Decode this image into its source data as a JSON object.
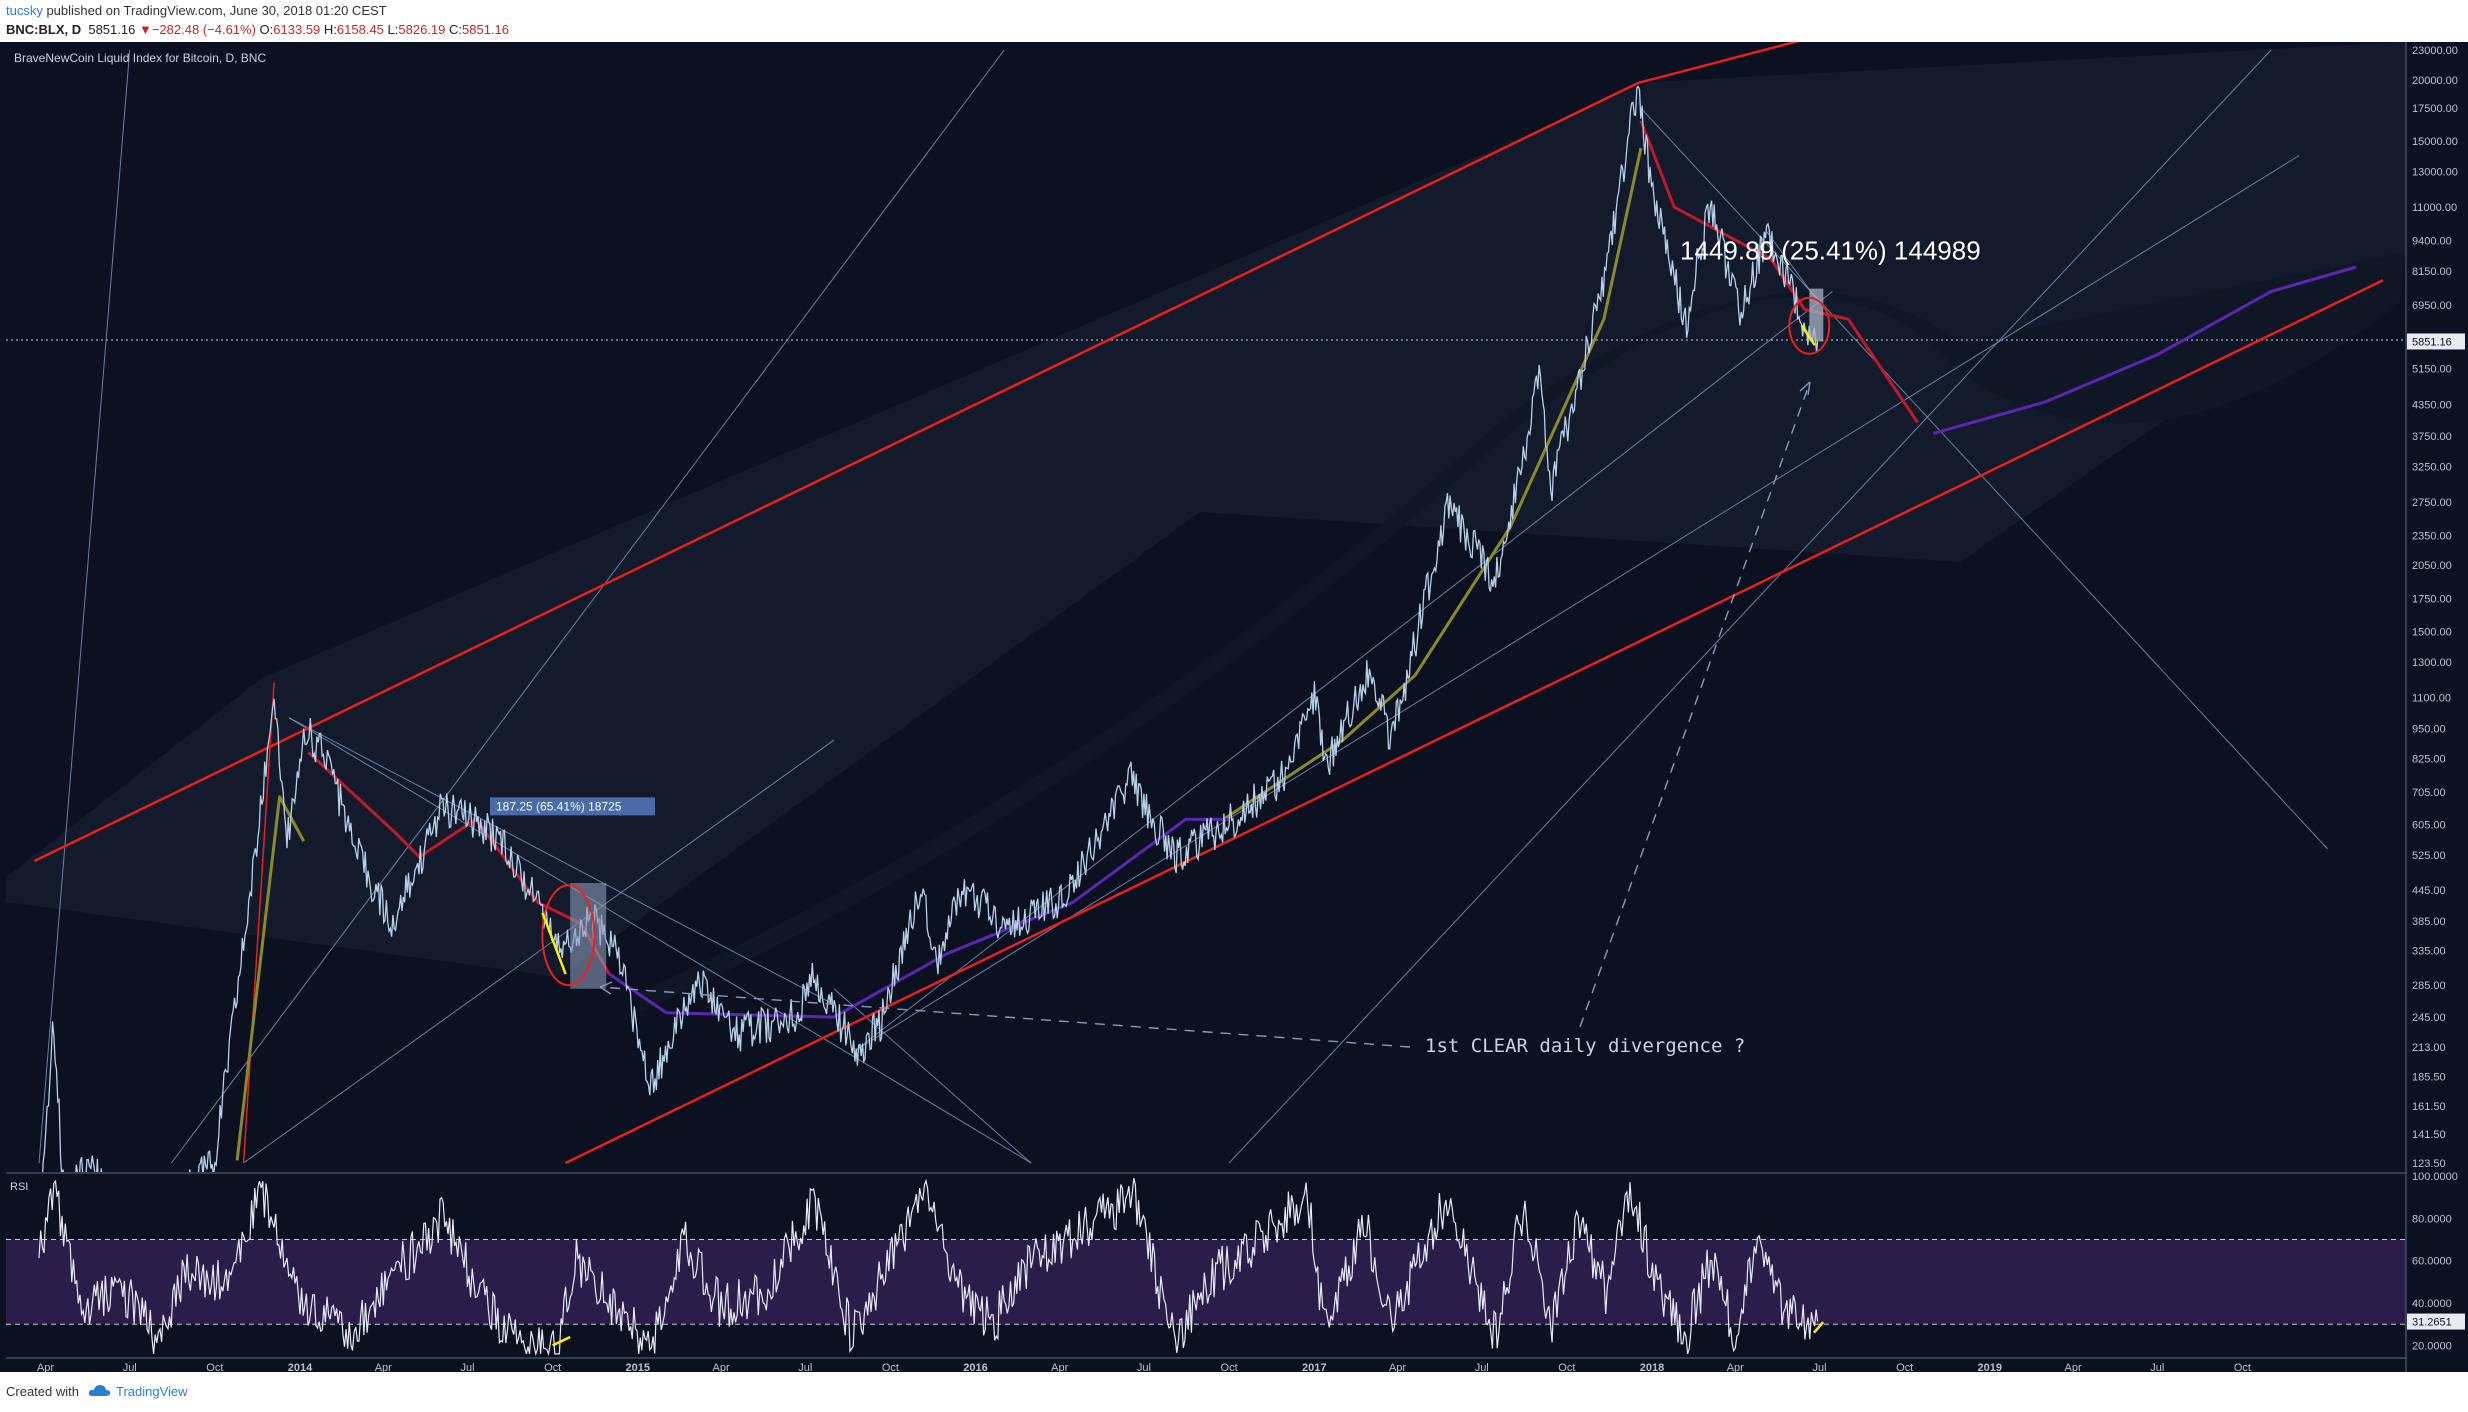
{
  "header": {
    "user": "tucsky",
    "published": " published on TradingView.com, June 30, 2018 01:20 CEST",
    "symbol": "BNC:BLX, D",
    "last": "5851.16",
    "change_arrow": "▼",
    "change": "−282.48 (−4.61%)",
    "o_label": "O:",
    "o": "6133.59",
    "h_label": "H:",
    "h": "6158.45",
    "l_label": "L:",
    "l": "5826.19",
    "c_label": "C:",
    "c": "5851.16"
  },
  "footer": {
    "created_with": "Created with",
    "brand": "TradingView"
  },
  "colors": {
    "background": "#0b1120",
    "price": "#b8cfe8",
    "channel": "#e8201e",
    "trendline": "#8aa3c8",
    "ma_green": "#8a8a2a",
    "ma_red": "#c0192a",
    "ma_purple": "#5a28b0",
    "rsi_line": "#e8e8f5",
    "rsi_band": "#2a1d4a",
    "highlight": "#ffee00"
  },
  "chart_data": {
    "type": "line",
    "title": "BraveNewCoin Liquid Index for Bitcoin, D, BNC",
    "price_scale": "log",
    "price_axis_ticks": [
      "123.50",
      "141.50",
      "161.50",
      "185.50",
      "213.00",
      "245.00",
      "285.00",
      "335.00",
      "385.00",
      "445.00",
      "525.00",
      "605.00",
      "705.00",
      "825.00",
      "950.00",
      "1100.00",
      "1300.00",
      "1500.00",
      "1750.00",
      "2050.00",
      "2350.00",
      "2750.00",
      "3250.00",
      "3750.00",
      "4350.00",
      "5150.00",
      "5851.16",
      "6950.00",
      "8150.00",
      "9400.00",
      "11000.00",
      "13000.00",
      "15000.00",
      "17500.00",
      "20000.00",
      "23000.00"
    ],
    "last_price_label": "5851.16",
    "time_axis_labels": [
      "Apr",
      "Jul",
      "Oct",
      "2014",
      "Apr",
      "Jul",
      "Oct",
      "2015",
      "Apr",
      "Jul",
      "Oct",
      "2016",
      "Apr",
      "Jul",
      "Oct",
      "2017",
      "Apr",
      "Jul",
      "Oct",
      "2018",
      "Apr",
      "Jul",
      "Oct",
      "2019",
      "Apr",
      "Jul",
      "Oct"
    ],
    "series": [
      {
        "name": "BLX",
        "points": [
          [
            "2013-03-25",
            95
          ],
          [
            "2013-04-10",
            240
          ],
          [
            "2013-04-20",
            110
          ],
          [
            "2013-05-20",
            120
          ],
          [
            "2013-06-30",
            95
          ],
          [
            "2013-08-15",
            100
          ],
          [
            "2013-10-01",
            125
          ],
          [
            "2013-11-18",
            600
          ],
          [
            "2013-12-04",
            1150
          ],
          [
            "2013-12-18",
            560
          ],
          [
            "2014-01-05",
            950
          ],
          [
            "2014-02-01",
            820
          ],
          [
            "2014-02-25",
            560
          ],
          [
            "2014-04-10",
            380
          ],
          [
            "2014-05-01",
            460
          ],
          [
            "2014-06-03",
            660
          ],
          [
            "2014-07-01",
            620
          ],
          [
            "2014-08-10",
            560
          ],
          [
            "2014-09-20",
            400
          ],
          [
            "2014-10-10",
            340
          ],
          [
            "2014-11-10",
            390
          ],
          [
            "2014-12-10",
            340
          ],
          [
            "2015-01-14",
            175
          ],
          [
            "2015-02-10",
            230
          ],
          [
            "2015-03-10",
            290
          ],
          [
            "2015-04-15",
            225
          ],
          [
            "2015-06-20",
            245
          ],
          [
            "2015-07-10",
            295
          ],
          [
            "2015-08-25",
            210
          ],
          [
            "2015-09-20",
            235
          ],
          [
            "2015-11-04",
            460
          ],
          [
            "2015-11-20",
            320
          ],
          [
            "2015-12-20",
            450
          ],
          [
            "2016-02-01",
            375
          ],
          [
            "2016-04-01",
            420
          ],
          [
            "2016-06-17",
            750
          ],
          [
            "2016-08-02",
            520
          ],
          [
            "2016-10-01",
            610
          ],
          [
            "2016-12-01",
            760
          ],
          [
            "2017-01-04",
            1150
          ],
          [
            "2017-01-12",
            780
          ],
          [
            "2017-03-03",
            1290
          ],
          [
            "2017-03-25",
            890
          ],
          [
            "2017-05-25",
            2700
          ],
          [
            "2017-07-16",
            1900
          ],
          [
            "2017-09-01",
            4900
          ],
          [
            "2017-09-15",
            3000
          ],
          [
            "2017-11-08",
            7400
          ],
          [
            "2017-12-17",
            19600
          ],
          [
            "2017-12-30",
            12500
          ],
          [
            "2018-01-16",
            9500
          ],
          [
            "2018-02-06",
            6300
          ],
          [
            "2018-03-05",
            11500
          ],
          [
            "2018-04-06",
            6600
          ],
          [
            "2018-05-05",
            9800
          ],
          [
            "2018-06-24",
            5800
          ],
          [
            "2018-06-29",
            5851.16
          ]
        ]
      },
      {
        "name": "MA green",
        "points": [
          [
            "2013-10-25",
            125
          ],
          [
            "2013-12-10",
            690
          ],
          [
            "2014-01-05",
            560
          ],
          [
            "2016-09-25",
            620
          ],
          [
            "2017-02-01",
            900
          ],
          [
            "2017-04-20",
            1220
          ],
          [
            "2017-08-01",
            2450
          ],
          [
            "2017-11-10",
            6500
          ],
          [
            "2017-12-20",
            14500
          ]
        ]
      },
      {
        "name": "MA red",
        "points": [
          [
            "2014-01-10",
            850
          ],
          [
            "2014-04-15",
            580
          ],
          [
            "2014-05-10",
            520
          ],
          [
            "2014-07-10",
            620
          ],
          [
            "2014-09-15",
            420
          ],
          [
            "2014-11-01",
            380
          ],
          [
            "2014-12-01",
            300
          ],
          [
            "2017-12-20",
            16500
          ],
          [
            "2018-01-25",
            11000
          ],
          [
            "2018-05-10",
            8600
          ],
          [
            "2018-06-15",
            6800
          ],
          [
            "2018-08-01",
            6500
          ],
          [
            "2018-10-15",
            4000
          ]
        ]
      },
      {
        "name": "MA purple",
        "points": [
          [
            "2014-12-01",
            300
          ],
          [
            "2015-02-01",
            250
          ],
          [
            "2015-08-01",
            245
          ],
          [
            "2015-12-01",
            330
          ],
          [
            "2016-04-15",
            420
          ],
          [
            "2016-08-15",
            620
          ],
          [
            "2016-10-01",
            620
          ],
          [
            "2018-11-01",
            3800
          ],
          [
            "2019-03-01",
            4400
          ],
          [
            "2019-07-01",
            5500
          ],
          [
            "2019-11-01",
            7400
          ],
          [
            "2020-02-01",
            8300
          ]
        ]
      }
    ],
    "rsi": {
      "name": "RSI",
      "axis_ticks": [
        "100.0000",
        "80.0000",
        "60.0000",
        "40.0000",
        "20.0000"
      ],
      "last_value_label": "31.2651",
      "overbought": 70,
      "oversold": 30,
      "range": [
        15,
        100
      ],
      "points": [
        [
          "2013-03-25",
          60
        ],
        [
          "2013-04-10",
          95
        ],
        [
          "2013-05-10",
          35
        ],
        [
          "2013-06-20",
          48
        ],
        [
          "2013-08-01",
          22
        ],
        [
          "2013-09-01",
          55
        ],
        [
          "2013-10-15",
          48
        ],
        [
          "2013-11-20",
          92
        ],
        [
          "2014-01-01",
          40
        ],
        [
          "2014-02-25",
          25
        ],
        [
          "2014-04-01",
          48
        ],
        [
          "2014-06-03",
          80
        ],
        [
          "2014-07-20",
          40
        ],
        [
          "2014-08-20",
          22
        ],
        [
          "2014-10-05",
          18
        ],
        [
          "2014-10-25",
          60
        ],
        [
          "2014-11-20",
          48
        ],
        [
          "2015-01-14",
          18
        ],
        [
          "2015-02-20",
          70
        ],
        [
          "2015-04-01",
          38
        ],
        [
          "2015-05-20",
          45
        ],
        [
          "2015-07-10",
          88
        ],
        [
          "2015-08-20",
          25
        ],
        [
          "2015-10-01",
          60
        ],
        [
          "2015-11-05",
          92
        ],
        [
          "2015-12-10",
          50
        ],
        [
          "2016-01-20",
          30
        ],
        [
          "2016-03-01",
          60
        ],
        [
          "2016-05-30",
          85
        ],
        [
          "2016-06-20",
          93
        ],
        [
          "2016-08-02",
          22
        ],
        [
          "2016-09-20",
          55
        ],
        [
          "2016-11-01",
          70
        ],
        [
          "2016-12-25",
          90
        ],
        [
          "2017-01-12",
          28
        ],
        [
          "2017-02-25",
          78
        ],
        [
          "2017-03-25",
          30
        ],
        [
          "2017-05-25",
          90
        ],
        [
          "2017-07-16",
          25
        ],
        [
          "2017-08-15",
          85
        ],
        [
          "2017-09-15",
          30
        ],
        [
          "2017-10-15",
          80
        ],
        [
          "2017-11-12",
          45
        ],
        [
          "2017-12-10",
          92
        ],
        [
          "2018-01-05",
          50
        ],
        [
          "2018-02-05",
          22
        ],
        [
          "2018-03-05",
          60
        ],
        [
          "2018-04-01",
          25
        ],
        [
          "2018-04-25",
          70
        ],
        [
          "2018-05-25",
          35
        ],
        [
          "2018-06-24",
          28
        ],
        [
          "2018-06-29",
          31.2651
        ]
      ],
      "divergence_marks": [
        [
          [
            "2014-10-01",
            20
          ],
          [
            "2014-10-20",
            24
          ]
        ],
        [
          [
            "2018-06-25",
            26
          ],
          [
            "2018-07-05",
            31
          ]
        ]
      ]
    },
    "annotations": {
      "measure_1": "187.25 (65.41%) 18725",
      "measure_2": "1449.89 (25.41%) 144989",
      "note": "1st CLEAR daily divergence ?"
    }
  }
}
